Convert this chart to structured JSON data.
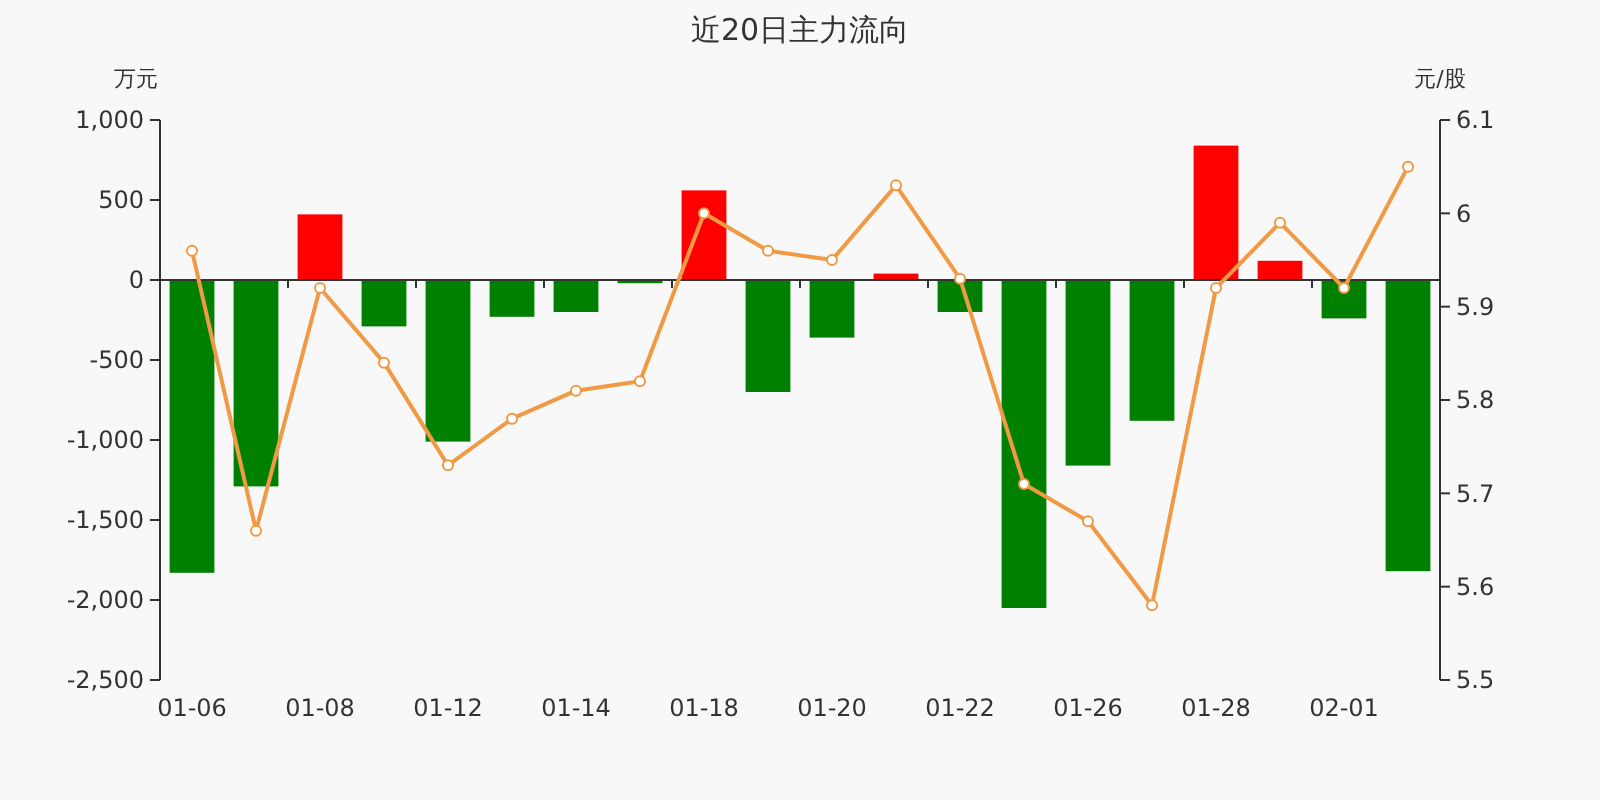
{
  "chart_data": {
    "type": "bar",
    "title": "近20日主力流向",
    "ylabel": "万元",
    "y2label": "元/股",
    "categories": [
      "01-06",
      null,
      "01-08",
      null,
      "01-12",
      null,
      "01-14",
      null,
      "01-18",
      null,
      "01-20",
      null,
      "01-22",
      null,
      "01-26",
      null,
      "01-28",
      null,
      "02-01",
      null
    ],
    "series": [
      {
        "values": [
          -1830,
          -1290,
          410,
          -290,
          -1010,
          -230,
          -200,
          -20,
          560,
          -700,
          -360,
          40,
          -200,
          -2050,
          -1160,
          -880,
          840,
          120,
          -240,
          -1820
        ],
        "colors": [
          "#008000",
          "#008000",
          "#ff0000",
          "#008000",
          "#008000",
          "#008000",
          "#008000",
          "#008000",
          "#ff0000",
          "#008000",
          "#008000",
          "#ff0000",
          "#008000",
          "#008000",
          "#008000",
          "#008000",
          "#ff0000",
          "#ff0000",
          "#008000",
          "#008000"
        ]
      },
      {
        "type": "line",
        "axis": "y2",
        "color": "#f09a45",
        "marker": "circle",
        "values": [
          5.96,
          5.66,
          5.92,
          5.84,
          5.73,
          5.78,
          5.81,
          5.82,
          6.0,
          5.96,
          5.95,
          6.03,
          5.93,
          5.71,
          5.67,
          5.58,
          5.92,
          5.99,
          5.92,
          6.05
        ]
      }
    ],
    "ylim": [
      -2500,
      1000
    ],
    "yticks": [
      {
        "value": -2500,
        "label": "-2,500"
      },
      {
        "value": -2000,
        "label": "-2,000"
      },
      {
        "value": -1500,
        "label": "-1,500"
      },
      {
        "value": -1000,
        "label": "-1,000"
      },
      -500,
      0,
      500,
      {
        "value": 1000,
        "label": "1,000"
      }
    ],
    "y2lim": [
      5.5,
      6.1
    ],
    "y2ticks": [
      5.5,
      5.6,
      5.7,
      5.8,
      5.9,
      6,
      6.1
    ]
  }
}
